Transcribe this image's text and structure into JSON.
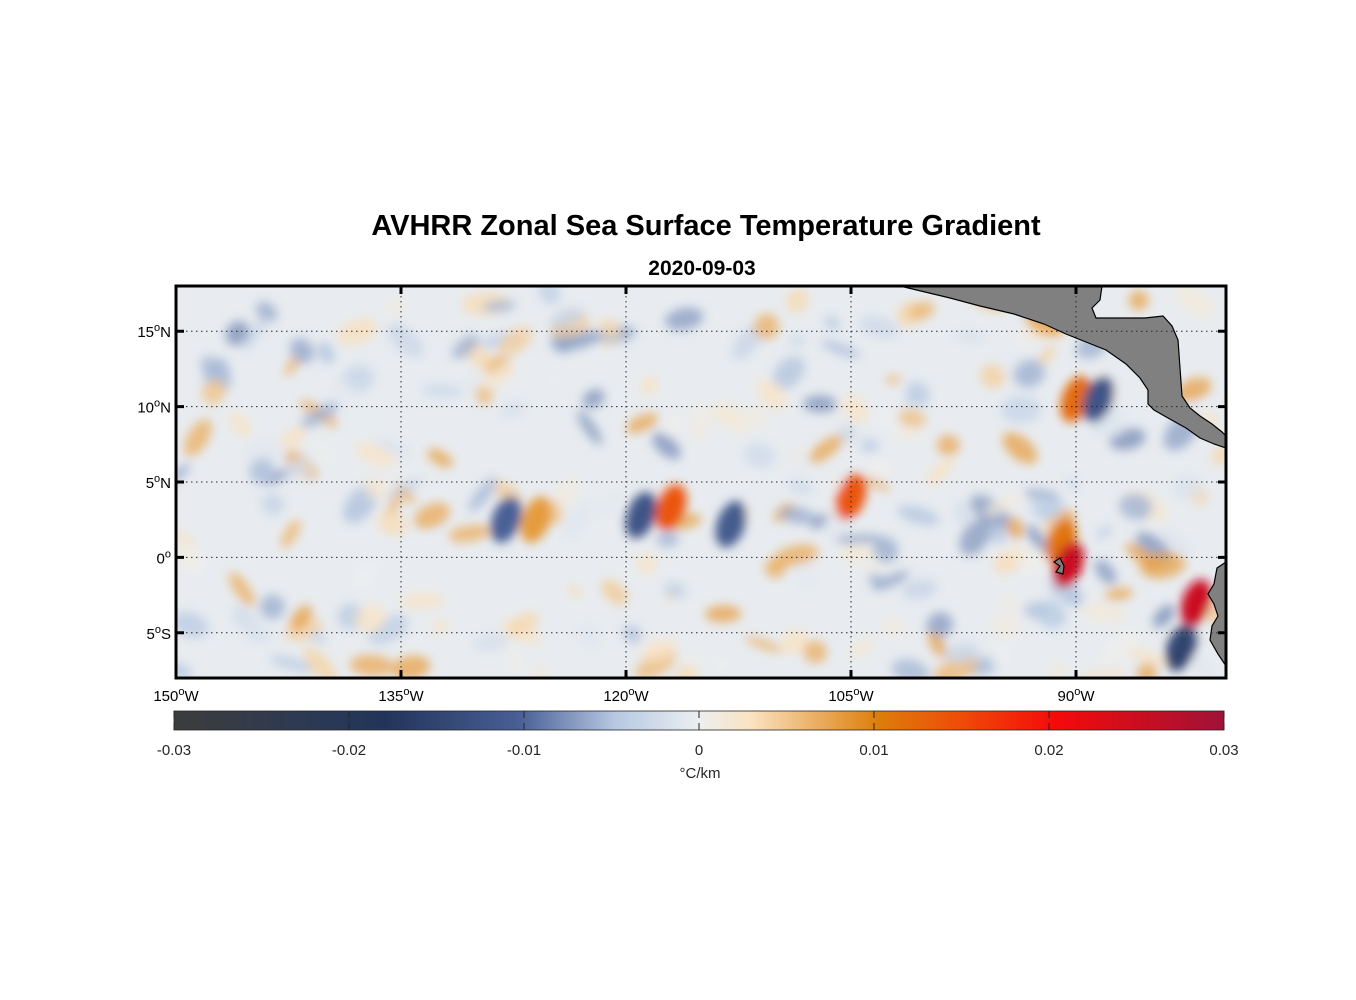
{
  "figure": {
    "title": "AVHRR Zonal Sea Surface Temperature Gradient",
    "subtitle": "2020-09-03"
  },
  "chart_data": {
    "type": "heatmap",
    "map_extent": {
      "lon": [
        -150,
        -80
      ],
      "lat": [
        -8,
        18
      ]
    },
    "grid": true,
    "lon_ticks": [
      {
        "value": -150,
        "deg": "150",
        "hemi": "W"
      },
      {
        "value": -135,
        "deg": "135",
        "hemi": "W"
      },
      {
        "value": -120,
        "deg": "120",
        "hemi": "W"
      },
      {
        "value": -105,
        "deg": "105",
        "hemi": "W"
      },
      {
        "value": -90,
        "deg": "90",
        "hemi": "W"
      }
    ],
    "lat_ticks": [
      {
        "value": 15,
        "deg": "15",
        "hemi": "N"
      },
      {
        "value": 10,
        "deg": "10",
        "hemi": "N"
      },
      {
        "value": 5,
        "deg": "5",
        "hemi": "N"
      },
      {
        "value": 0,
        "deg": "0",
        "hemi": ""
      },
      {
        "value": -5,
        "deg": "5",
        "hemi": "S"
      }
    ],
    "colorbar": {
      "range": [
        -0.03,
        0.03
      ],
      "tick_values": [
        -0.03,
        -0.02,
        -0.01,
        0,
        0.01,
        0.02,
        0.03
      ],
      "tick_labels": [
        "-0.03",
        "-0.02",
        "-0.01",
        "0",
        "0.01",
        "0.02",
        "0.03"
      ],
      "units": "°C/km",
      "colors": [
        "#3c3c3c",
        "#223459",
        "#5670a7",
        "#e8ecf0",
        "#fae2c0",
        "#dd7e0a",
        "#f50a0a",
        "#9f1238"
      ]
    },
    "features": [
      {
        "lon": -128,
        "lat": 2.5,
        "value": -0.01
      },
      {
        "lon": -126,
        "lat": 2.5,
        "value": 0.008
      },
      {
        "lon": -119,
        "lat": 2.8,
        "value": -0.012
      },
      {
        "lon": -117,
        "lat": 3.3,
        "value": 0.014
      },
      {
        "lon": -113,
        "lat": 2.2,
        "value": -0.011
      },
      {
        "lon": -105,
        "lat": 4,
        "value": 0.014
      },
      {
        "lon": -91,
        "lat": 1,
        "value": 0.011
      },
      {
        "lon": -90.5,
        "lat": -0.5,
        "value": 0.025
      },
      {
        "lon": -90,
        "lat": 10.5,
        "value": 0.012
      },
      {
        "lon": -88.5,
        "lat": 10.5,
        "value": -0.012
      },
      {
        "lon": -82,
        "lat": -3,
        "value": 0.025
      },
      {
        "lon": -83,
        "lat": -6,
        "value": -0.015
      }
    ],
    "colors": {
      "land": "#808080",
      "coast": "#000000",
      "grid": "#262626",
      "ocean_zero": "#e8ecf0"
    }
  }
}
